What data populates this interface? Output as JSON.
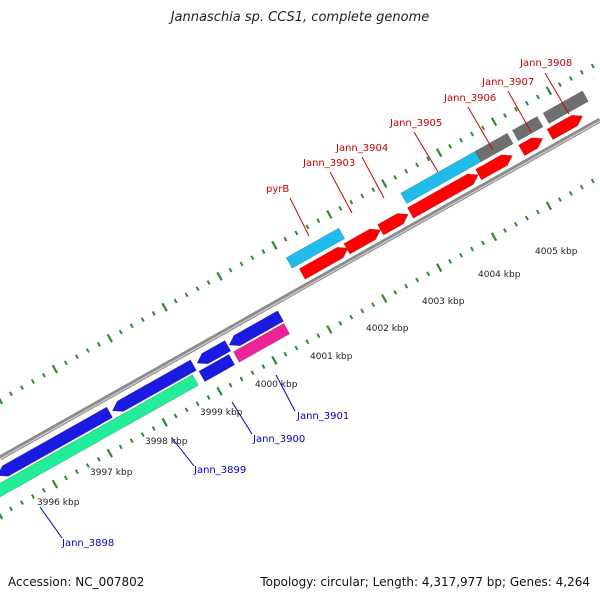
{
  "title": "Jannaschia sp. CCS1, complete genome",
  "footer": {
    "accession": "Accession: NC_007802",
    "summary": "Topology: circular; Length: 4,317,977 bp; Genes: 4,264"
  },
  "colors": {
    "forward_label": "#cc0000",
    "reverse_label": "#0000cc",
    "tick": "#2e8b2e",
    "backbone": "#8c8c8c",
    "red": "#ff0000",
    "cyan": "#22bbee",
    "gray": "#6f6f6f",
    "blue": "#1a1ae0",
    "magenta": "#ee2299",
    "green": "#22ee99"
  },
  "kbp_labels": [
    "3996 kbp",
    "3997 kbp",
    "3998 kbp",
    "3999 kbp",
    "4000 kbp",
    "4001 kbp",
    "4002 kbp",
    "4003 kbp",
    "4004 kbp",
    "4005 kbp"
  ],
  "forward_genes": [
    "pyrB",
    "Jann_3903",
    "Jann_3904",
    "Jann_3905",
    "Jann_3906",
    "Jann_3907",
    "Jann_3908"
  ],
  "reverse_genes": [
    "Jann_3898",
    "Jann_3899",
    "Jann_3900",
    "Jann_3901"
  ]
}
